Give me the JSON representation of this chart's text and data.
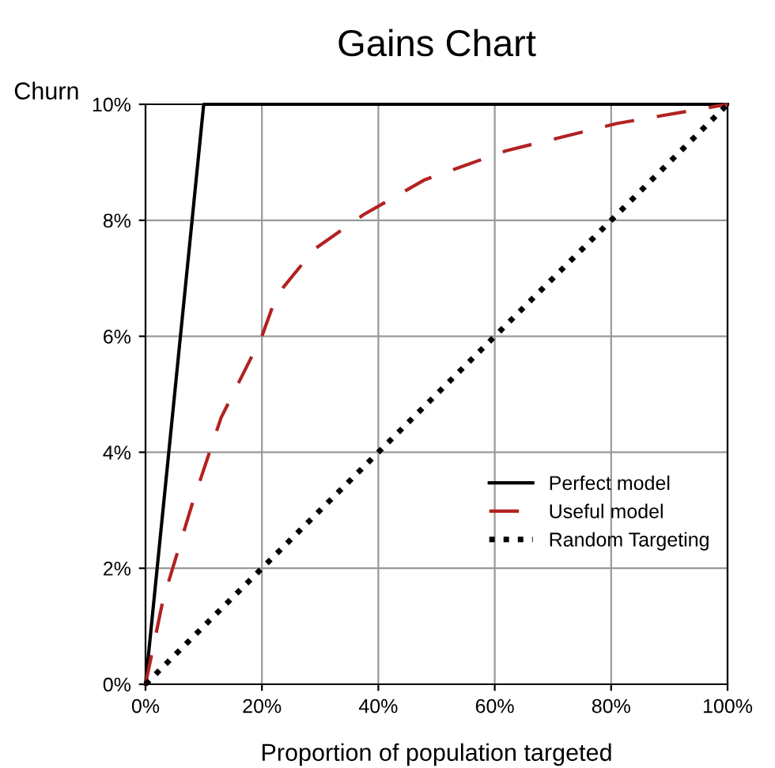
{
  "chart_data": {
    "type": "line",
    "title": "Gains Chart",
    "xlabel": "Proportion of population targeted",
    "ylabel": "Churn",
    "xlim": [
      0,
      100
    ],
    "ylim": [
      0,
      10
    ],
    "xticks": [
      {
        "value": 0,
        "label": "0%"
      },
      {
        "value": 20,
        "label": "20%"
      },
      {
        "value": 40,
        "label": "40%"
      },
      {
        "value": 60,
        "label": "60%"
      },
      {
        "value": 80,
        "label": "80%"
      },
      {
        "value": 100,
        "label": "100%"
      }
    ],
    "yticks": [
      {
        "value": 0,
        "label": "0%"
      },
      {
        "value": 2,
        "label": "2%"
      },
      {
        "value": 4,
        "label": "4%"
      },
      {
        "value": 6,
        "label": "6%"
      },
      {
        "value": 8,
        "label": "8%"
      },
      {
        "value": 10,
        "label": "10%"
      }
    ],
    "grid": true,
    "legend": "lower right",
    "series": [
      {
        "name": "Perfect model",
        "color": "#000000",
        "line_style": "solid",
        "x": [
          0,
          10,
          100
        ],
        "values": [
          0,
          10,
          10
        ]
      },
      {
        "name": "Useful model",
        "color": "#b22222",
        "line_style": "dashed",
        "x": [
          0,
          3,
          8,
          13,
          20,
          22.5,
          29,
          37.5,
          48,
          62,
          81,
          100
        ],
        "values": [
          0,
          1.45,
          3.1,
          4.6,
          6.0,
          6.7,
          7.5,
          8.1,
          8.7,
          9.2,
          9.67,
          10
        ]
      },
      {
        "name": "Random Targeting",
        "color": "#000000",
        "line_style": "dotted",
        "x": [
          0,
          100
        ],
        "values": [
          0,
          10
        ]
      }
    ]
  }
}
